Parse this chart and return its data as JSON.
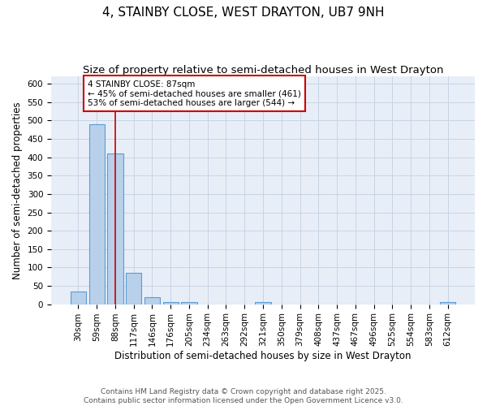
{
  "title": "4, STAINBY CLOSE, WEST DRAYTON, UB7 9NH",
  "subtitle": "Size of property relative to semi-detached houses in West Drayton",
  "xlabel": "Distribution of semi-detached houses by size in West Drayton",
  "ylabel": "Number of semi-detached properties",
  "footnote1": "Contains HM Land Registry data © Crown copyright and database right 2025.",
  "footnote2": "Contains public sector information licensed under the Open Government Licence v3.0.",
  "bin_labels": [
    "30sqm",
    "59sqm",
    "88sqm",
    "117sqm",
    "146sqm",
    "176sqm",
    "205sqm",
    "234sqm",
    "263sqm",
    "292sqm",
    "321sqm",
    "350sqm",
    "379sqm",
    "408sqm",
    "437sqm",
    "467sqm",
    "496sqm",
    "525sqm",
    "554sqm",
    "583sqm",
    "612sqm"
  ],
  "bar_values": [
    35,
    490,
    410,
    85,
    20,
    5,
    5,
    0,
    0,
    0,
    5,
    0,
    0,
    0,
    0,
    0,
    0,
    0,
    0,
    0,
    5
  ],
  "bar_color": "#b8d0ea",
  "bar_edge_color": "#5b9bd5",
  "grid_color": "#c8d4e4",
  "background_color": "#e8eef8",
  "property_bin_index": 2,
  "vline_color": "#cc0000",
  "annotation_line1": "4 STAINBY CLOSE: 87sqm",
  "annotation_line2": "← 45% of semi-detached houses are smaller (461)",
  "annotation_line3": "53% of semi-detached houses are larger (544) →",
  "annotation_box_color": "#cc0000",
  "ylim": [
    0,
    620
  ],
  "yticks": [
    0,
    50,
    100,
    150,
    200,
    250,
    300,
    350,
    400,
    450,
    500,
    550,
    600
  ],
  "title_fontsize": 11,
  "subtitle_fontsize": 9.5,
  "label_fontsize": 8.5,
  "tick_fontsize": 7.5,
  "annotation_fontsize": 7.5,
  "footnote_fontsize": 6.5
}
